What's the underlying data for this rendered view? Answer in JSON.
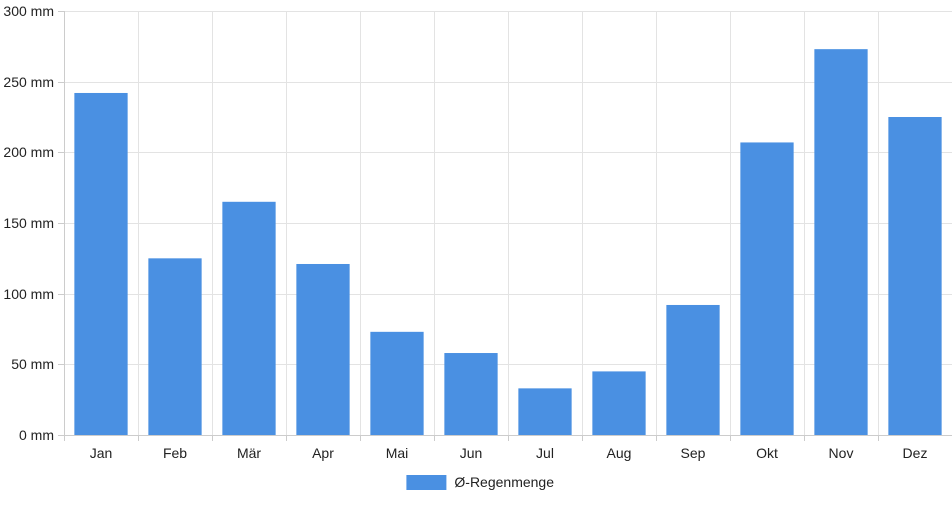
{
  "chart_data": {
    "type": "bar",
    "title": "",
    "xlabel": "",
    "ylabel": "",
    "categories": [
      "Jan",
      "Feb",
      "Mär",
      "Apr",
      "Mai",
      "Jun",
      "Jul",
      "Aug",
      "Sep",
      "Okt",
      "Nov",
      "Dez"
    ],
    "series": [
      {
        "name": "Ø-Regenmenge",
        "color": "#4a90e2",
        "values": [
          242,
          125,
          165,
          121,
          73,
          58,
          33,
          45,
          92,
          207,
          273,
          225
        ]
      }
    ],
    "ylim": [
      0,
      300
    ],
    "y_ticks": [
      0,
      50,
      100,
      150,
      200,
      250,
      300
    ],
    "y_tick_suffix": " mm",
    "grid": true,
    "legend_position": "bottom"
  }
}
